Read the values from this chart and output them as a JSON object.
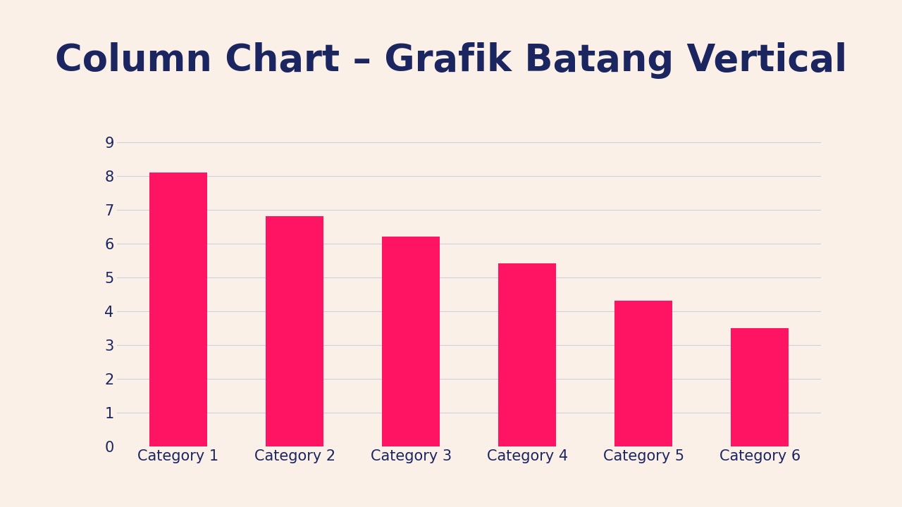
{
  "title": "Column Chart – Grafik Batang Vertical",
  "categories": [
    "Category 1",
    "Category 2",
    "Category 3",
    "Category 4",
    "Category 5",
    "Category 6"
  ],
  "values": [
    8.1,
    6.8,
    6.2,
    5.4,
    4.3,
    3.5
  ],
  "bar_color": "#FF1464",
  "background_color": "#FAF0E8",
  "title_color": "#1B2560",
  "tick_color": "#1B2560",
  "grid_color": "#C8D0E0",
  "ylim": [
    0,
    9
  ],
  "yticks": [
    0,
    1,
    2,
    3,
    4,
    5,
    6,
    7,
    8,
    9
  ],
  "bar_width": 0.5,
  "title_fontsize": 38,
  "tick_fontsize": 15
}
